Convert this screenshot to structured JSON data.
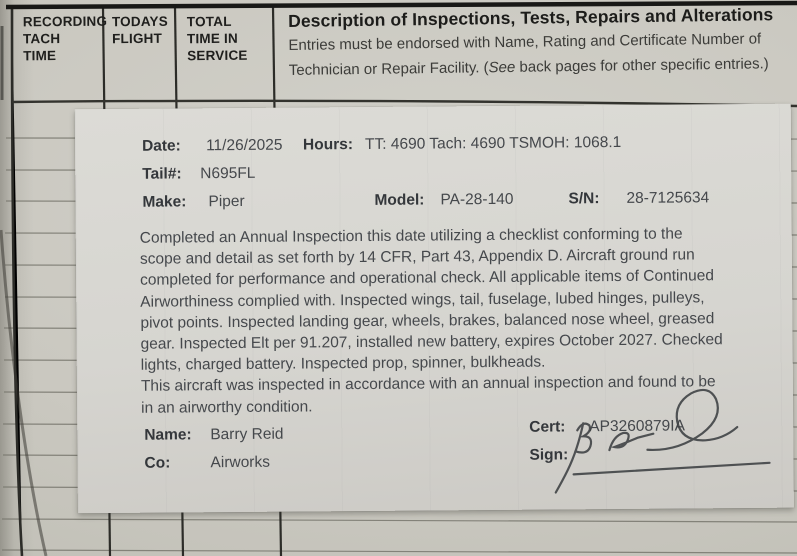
{
  "page": {
    "columns": [
      {
        "label": "RECORDING\nTACH\nTIME"
      },
      {
        "label": "TODAYS\nFLIGHT"
      },
      {
        "label": "TOTAL\nTIME IN\nSERVICE"
      }
    ],
    "description_header": {
      "title": "Description of Inspections, Tests, Repairs and Alterations",
      "subtitle_line1": "Entries must be endorsed with Name, Rating and Certificate Number of",
      "subtitle_line2_pre": "Technician or Repair Facility. (",
      "subtitle_line2_italic": "See",
      "subtitle_line2_post": " back pages for other specific entries.)"
    }
  },
  "sticker": {
    "fields": {
      "date_label": "Date:",
      "date": "11/26/2025",
      "hours_label": "Hours:",
      "hours": "TT: 4690 Tach: 4690 TSMOH: 1068.1",
      "tail_label": "Tail#:",
      "tail": "N695FL",
      "make_label": "Make:",
      "make": "Piper",
      "model_label": "Model:",
      "model": "PA-28-140",
      "sn_label": "S/N:",
      "sn": "28-7125634"
    },
    "body_lines": [
      "Completed an Annual Inspection this date utilizing a checklist conforming to the",
      "scope and detail as set forth by 14 CFR, Part 43, Appendix D. Aircraft ground run",
      "completed for performance and operational check. All applicable items of Continued",
      "Airworthiness complied with. Inspected wings, tail, fuselage, lubed hinges, pulleys,",
      "pivot points. Inspected landing gear, wheels, brakes, balanced nose wheel, greased",
      "gear. Inspected Elt per 91.207, installed new battery, expires October 2027. Checked",
      "lights, charged battery. Inspected prop, spinner, bulkheads.",
      "This aircraft was inspected in accordance with an annual inspection and found to be",
      "in an airworthy condition."
    ],
    "signoff": {
      "name_label": "Name:",
      "name": "Barry Reid",
      "co_label": "Co:",
      "co": "Airworks",
      "cert_label": "Cert:",
      "cert": "AP3260879IA",
      "sign_label": "Sign:"
    }
  },
  "colors": {
    "paper": "#cac8c0",
    "sticker": "#d8d7d2",
    "ink": "#45484c",
    "print": "#1f1f1d"
  }
}
